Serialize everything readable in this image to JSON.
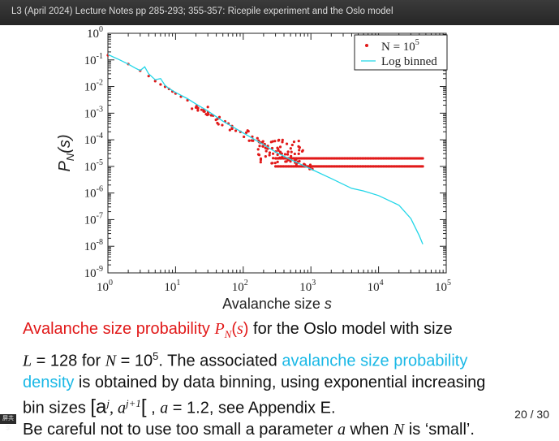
{
  "header": {
    "title": "L3 (April 2024) Lecture Notes pp 285-293; 355-357: Ricepile experiment and the Oslo model"
  },
  "chart_data": {
    "type": "scatter",
    "xlog": true,
    "ylog": true,
    "xlim": [
      1,
      100000
    ],
    "ylim": [
      1e-09,
      1
    ],
    "xlabel_text": "Avalanche size ",
    "xlabel_var": "s",
    "ylabel_text": "P",
    "ylabel_sub": "N",
    "ylabel_arg": "(s)",
    "xticks": [
      {
        "base": "10",
        "exp": "0"
      },
      {
        "base": "10",
        "exp": "1"
      },
      {
        "base": "10",
        "exp": "2"
      },
      {
        "base": "10",
        "exp": "3"
      },
      {
        "base": "10",
        "exp": "4"
      },
      {
        "base": "10",
        "exp": "5"
      }
    ],
    "yticks": [
      {
        "base": "10",
        "exp": "0"
      },
      {
        "base": "10",
        "exp": "-1"
      },
      {
        "base": "10",
        "exp": "-2"
      },
      {
        "base": "10",
        "exp": "-3"
      },
      {
        "base": "10",
        "exp": "-4"
      },
      {
        "base": "10",
        "exp": "-5"
      },
      {
        "base": "10",
        "exp": "-6"
      },
      {
        "base": "10",
        "exp": "-7"
      },
      {
        "base": "10",
        "exp": "-8"
      },
      {
        "base": "10",
        "exp": "-9"
      }
    ],
    "legend": {
      "placement": "top-right",
      "entries": [
        {
          "label": "N = 10",
          "sup": "5",
          "marker": "dot",
          "color": "#e11919"
        },
        {
          "label": "Log binned",
          "marker": "line",
          "color": "#22d6e8"
        }
      ]
    },
    "series": [
      {
        "marker": "scatter",
        "color": "#e11919",
        "points": [
          [
            1,
            0.15
          ],
          [
            2,
            0.07
          ],
          [
            3,
            0.04
          ],
          [
            4,
            0.025
          ],
          [
            5,
            0.016
          ],
          [
            6,
            0.012
          ],
          [
            7,
            0.01
          ],
          [
            8,
            0.008
          ],
          [
            9,
            0.0065
          ],
          [
            10,
            0.0055
          ],
          [
            12,
            0.0042
          ],
          [
            15,
            0.003
          ],
          [
            20,
            0.0019
          ],
          [
            25,
            0.0013
          ],
          [
            30,
            0.001
          ],
          [
            40,
            0.00065
          ],
          [
            50,
            0.00045
          ],
          [
            70,
            0.00027
          ],
          [
            100,
            0.00017
          ],
          [
            150,
            0.0001
          ],
          [
            200,
            7e-05
          ],
          [
            300,
            4e-05
          ],
          [
            500,
            2e-05
          ],
          [
            700,
            1.5e-05
          ],
          [
            1000,
            1e-05
          ]
        ],
        "floors": [
          1e-05,
          2e-05
        ],
        "floor_range": [
          300,
          45000
        ]
      },
      {
        "name": "Log binned",
        "marker": "line",
        "color": "#22d6e8",
        "points": [
          [
            1,
            0.16
          ],
          [
            1.5,
            0.1
          ],
          [
            2,
            0.07
          ],
          [
            2.5,
            0.05
          ],
          [
            3,
            0.04
          ],
          [
            3.5,
            0.055
          ],
          [
            4,
            0.03
          ],
          [
            5,
            0.018
          ],
          [
            6,
            0.02
          ],
          [
            7,
            0.011
          ],
          [
            8,
            0.0085
          ],
          [
            10,
            0.006
          ],
          [
            15,
            0.0035
          ],
          [
            20,
            0.0022
          ],
          [
            30,
            0.0012
          ],
          [
            50,
            0.0005
          ],
          [
            100,
            0.00018
          ],
          [
            200,
            6.5e-05
          ],
          [
            300,
            3.5e-05
          ],
          [
            500,
            1.8e-05
          ],
          [
            1000,
            8e-06
          ],
          [
            2000,
            3.5e-06
          ],
          [
            4000,
            1.5e-06
          ],
          [
            6000,
            1.2e-06
          ],
          [
            10000,
            8e-07
          ],
          [
            20000,
            3.5e-07
          ],
          [
            30000,
            1.1e-07
          ],
          [
            40000,
            2.5e-08
          ],
          [
            45000,
            1.2e-08
          ]
        ]
      }
    ]
  },
  "caption": {
    "l1a": "Avalanche size probability ",
    "l1b": "P",
    "l1c": "N",
    "l1d": "(",
    "l1e": "s",
    "l1f": ")",
    "l1g": " for the Oslo model with size",
    "l2a": "L",
    "l2b": " = 128 for ",
    "l2c": "N",
    "l2d": " = 10",
    "l2e": "5",
    "l2f": ". The associated ",
    "l2g": "avalanche size probability",
    "l3a": "density",
    "l3b": " is obtained by data binning, using exponential increasing",
    "l4a": "bin sizes ",
    "l4b": "[a",
    "l4c": "j",
    "l4d": ", a",
    "l4e": "j+1",
    "l4f": "[",
    "l4g": " , ",
    "l4h": "a",
    "l4i": " = 1.2, see Appendix E.",
    "l5a": "Be careful not to use too small a parameter ",
    "l5b": "a",
    "l5c": " when ",
    "l5d": "N",
    "l5e": " is ‘small’."
  },
  "pager": "20 / 30",
  "share_badge": "屏共享"
}
